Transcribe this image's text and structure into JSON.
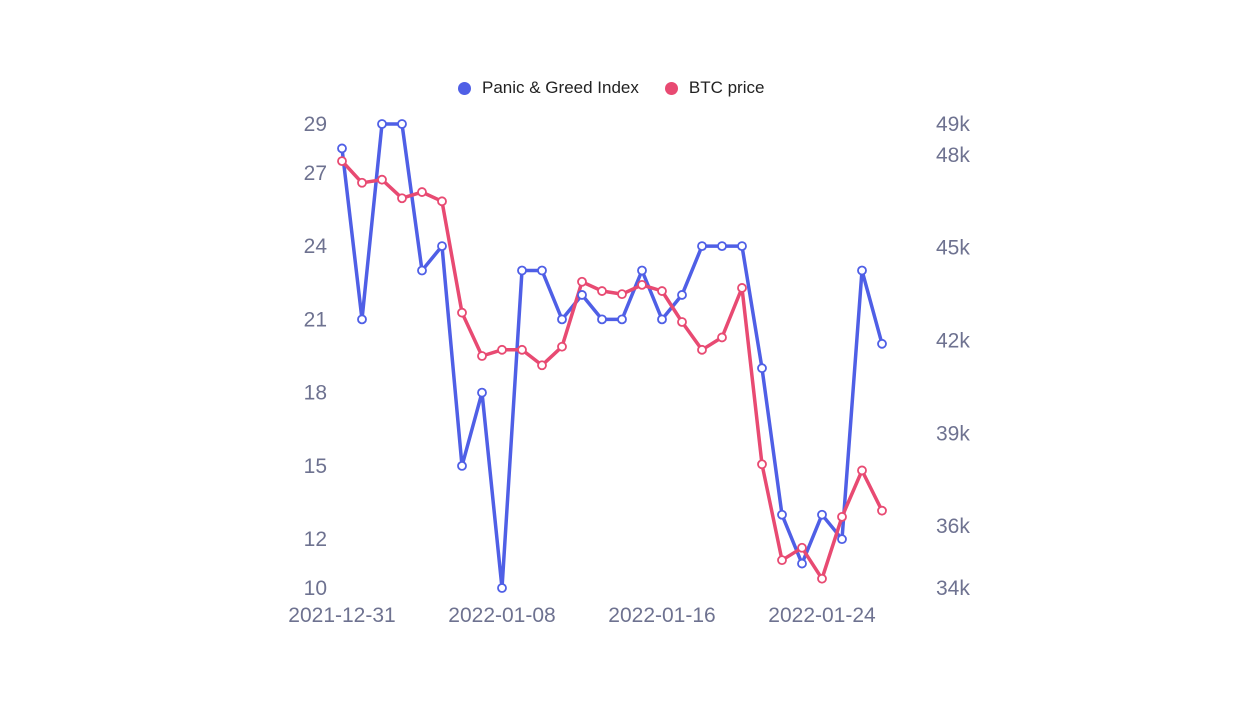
{
  "chart_data": {
    "type": "line",
    "x": [
      "2021-12-31",
      "2022-01-01",
      "2022-01-02",
      "2022-01-03",
      "2022-01-04",
      "2022-01-05",
      "2022-01-06",
      "2022-01-07",
      "2022-01-08",
      "2022-01-09",
      "2022-01-10",
      "2022-01-11",
      "2022-01-12",
      "2022-01-13",
      "2022-01-14",
      "2022-01-15",
      "2022-01-16",
      "2022-01-17",
      "2022-01-18",
      "2022-01-19",
      "2022-01-20",
      "2022-01-21",
      "2022-01-22",
      "2022-01-23",
      "2022-01-24",
      "2022-01-25",
      "2022-01-26",
      "2022-01-27"
    ],
    "x_ticks": [
      "2021-12-31",
      "2022-01-08",
      "2022-01-16",
      "2022-01-24"
    ],
    "y_left_ticks": [
      10,
      12,
      15,
      18,
      21,
      24,
      27,
      29
    ],
    "y_right_ticks": [
      "34k",
      "36k",
      "39k",
      "42k",
      "45k",
      "48k",
      "49k"
    ],
    "y_right_tick_values": [
      34000,
      36000,
      39000,
      42000,
      45000,
      48000,
      49000
    ],
    "y_left_range": [
      10,
      29
    ],
    "y_right_range": [
      34000,
      49000
    ],
    "legend_position": "top-center",
    "series": [
      {
        "name": "Panic & Greed Index",
        "axis": "left",
        "color": "#4f5fe6",
        "values": [
          28,
          21,
          29,
          29,
          23,
          24,
          15,
          18,
          10,
          23,
          23,
          21,
          22,
          21,
          21,
          23,
          21,
          22,
          24,
          24,
          24,
          19,
          13,
          11,
          13,
          12,
          23,
          20
        ]
      },
      {
        "name": "BTC price",
        "axis": "right",
        "color": "#e84a72",
        "values": [
          47800,
          47100,
          47200,
          46600,
          46800,
          46500,
          42900,
          41500,
          41700,
          41700,
          41200,
          41800,
          43900,
          43600,
          43500,
          43800,
          43600,
          42600,
          41700,
          42100,
          43700,
          38000,
          34900,
          35300,
          34300,
          36300,
          37800,
          36500
        ]
      }
    ]
  }
}
